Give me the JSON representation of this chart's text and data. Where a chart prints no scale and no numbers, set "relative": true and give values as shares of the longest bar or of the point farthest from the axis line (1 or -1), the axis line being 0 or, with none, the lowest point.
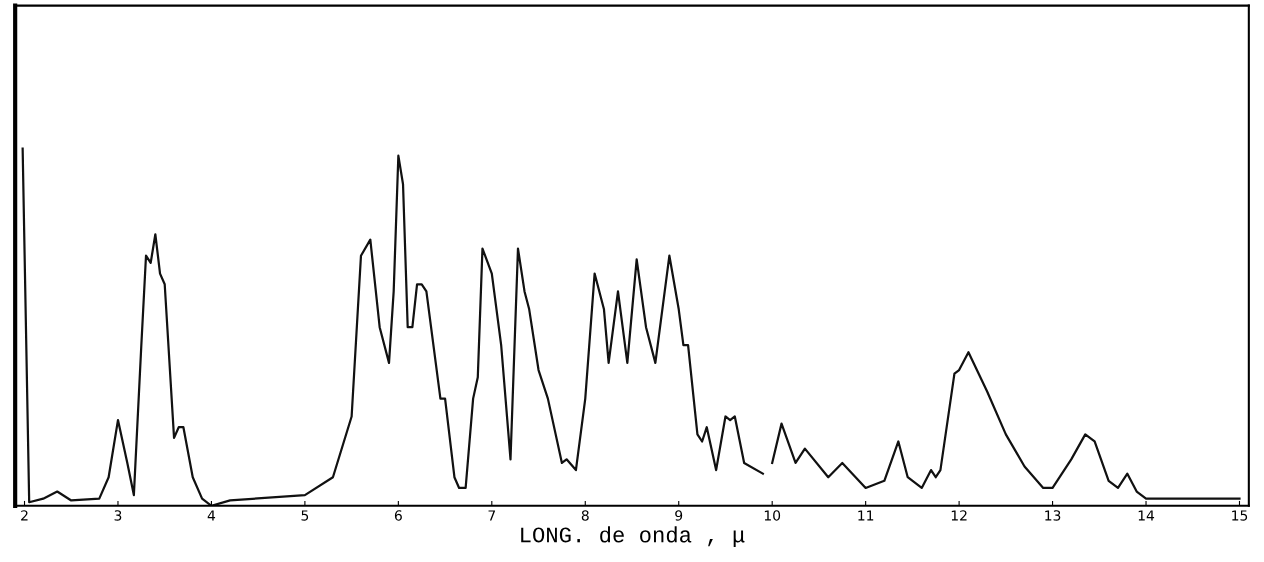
{
  "chart_data": {
    "type": "line",
    "relative": true,
    "xlabel": "LONG. de onda , μ",
    "color": "#111111",
    "xlim": [
      1.9,
      15.1
    ],
    "xticks": [
      2,
      3,
      4,
      5,
      6,
      7,
      8,
      9,
      10,
      11,
      12,
      13,
      14,
      15
    ],
    "grid": false,
    "x": [
      1.98,
      2.05,
      2.2,
      2.35,
      2.5,
      2.8,
      2.9,
      3.0,
      3.1,
      3.17,
      3.25,
      3.3,
      3.35,
      3.4,
      3.45,
      3.5,
      3.6,
      3.65,
      3.7,
      3.8,
      3.9,
      4.0,
      4.2,
      5.0,
      5.3,
      5.5,
      5.6,
      5.7,
      5.8,
      5.9,
      5.95,
      6.0,
      6.05,
      6.1,
      6.15,
      6.2,
      6.25,
      6.3,
      6.4,
      6.45,
      6.5,
      6.6,
      6.65,
      6.72,
      6.8,
      6.85,
      6.9,
      7.0,
      7.1,
      7.2,
      7.25,
      7.28,
      7.35,
      7.4,
      7.5,
      7.6,
      7.75,
      7.8,
      7.9,
      8.0,
      8.1,
      8.2,
      8.25,
      8.35,
      8.45,
      8.55,
      8.65,
      8.75,
      8.9,
      9.0,
      9.05,
      9.1,
      9.2,
      9.25,
      9.3,
      9.4,
      9.5,
      9.55,
      9.6,
      9.7,
      9.9,
      9.95,
      10.0,
      10.1,
      10.25,
      10.35,
      10.6,
      10.75,
      11.0,
      11.2,
      11.35,
      11.45,
      11.6,
      11.7,
      11.75,
      11.8,
      11.95,
      12.0,
      12.1,
      12.3,
      12.5,
      12.7,
      12.9,
      13.0,
      13.2,
      13.35,
      13.45,
      13.6,
      13.7,
      13.8,
      13.9,
      14.0,
      15.0
    ],
    "values": [
      1.0,
      0.01,
      0.02,
      0.04,
      0.015,
      0.02,
      0.08,
      0.24,
      0.12,
      0.03,
      0.45,
      0.7,
      0.68,
      0.76,
      0.65,
      0.62,
      0.19,
      0.22,
      0.22,
      0.08,
      0.02,
      0.0,
      0.015,
      0.03,
      0.08,
      0.25,
      0.7,
      0.745,
      0.5,
      0.4,
      0.6,
      0.98,
      0.9,
      0.5,
      0.5,
      0.62,
      0.62,
      0.6,
      0.4,
      0.3,
      0.3,
      0.08,
      0.05,
      0.05,
      0.3,
      0.36,
      0.72,
      0.65,
      0.45,
      0.13,
      0.5,
      0.72,
      0.6,
      0.55,
      0.38,
      0.3,
      0.12,
      0.13,
      0.1,
      0.3,
      0.65,
      0.55,
      0.4,
      0.6,
      0.4,
      0.69,
      0.5,
      0.4,
      0.7,
      0.55,
      0.45,
      0.45,
      0.2,
      0.18,
      0.22,
      0.1,
      0.25,
      0.24,
      0.25,
      0.12,
      0.09,
      null,
      0.12,
      0.23,
      0.12,
      0.16,
      0.08,
      0.12,
      0.05,
      0.07,
      0.18,
      0.08,
      0.05,
      0.1,
      0.08,
      0.1,
      0.37,
      0.38,
      0.43,
      0.32,
      0.2,
      0.11,
      0.05,
      0.05,
      0.13,
      0.2,
      0.18,
      0.07,
      0.05,
      0.09,
      0.04,
      0.02,
      0.02
    ]
  }
}
